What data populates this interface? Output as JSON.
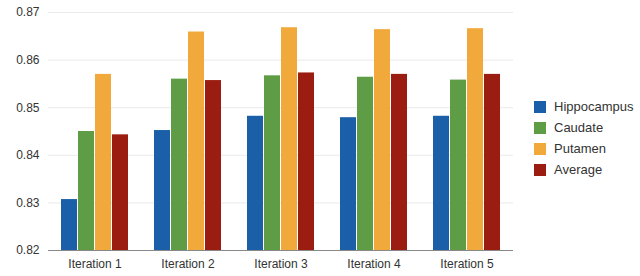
{
  "chart_data": {
    "type": "bar",
    "categories": [
      "Iteration 1",
      "Iteration 2",
      "Iteration 3",
      "Iteration 4",
      "Iteration 5"
    ],
    "series": [
      {
        "name": "Hippocampus",
        "color": "#1a5fa8",
        "values": [
          0.8307,
          0.8452,
          0.8482,
          0.8479,
          0.8482
        ]
      },
      {
        "name": "Caudate",
        "color": "#5e9d45",
        "values": [
          0.845,
          0.856,
          0.8567,
          0.8564,
          0.8558
        ]
      },
      {
        "name": "Putamen",
        "color": "#f0a93a",
        "values": [
          0.857,
          0.8659,
          0.8668,
          0.8664,
          0.8666
        ]
      },
      {
        "name": "Average",
        "color": "#9b1c10",
        "values": [
          0.8443,
          0.8557,
          0.8573,
          0.857,
          0.857
        ]
      }
    ],
    "ylim": [
      0.82,
      0.87
    ],
    "yticks": [
      0.82,
      0.83,
      0.84,
      0.85,
      0.86,
      0.87
    ],
    "grid": true,
    "legend": "right"
  }
}
